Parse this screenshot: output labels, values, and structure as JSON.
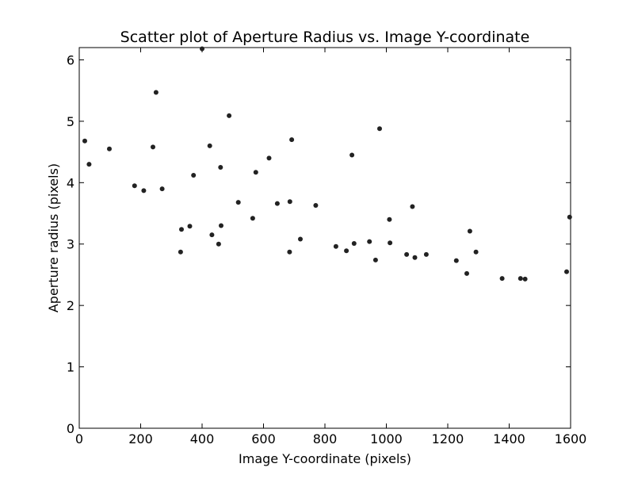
{
  "chart_data": {
    "type": "scatter",
    "title": "Scatter plot of Aperture Radius vs. Image Y-coordinate",
    "xlabel": "Image Y-coordinate (pixels)",
    "ylabel": "Aperture radius (pixels)",
    "xlim": [
      0,
      1600
    ],
    "ylim": [
      0,
      6.2
    ],
    "xticks": [
      "0",
      "200",
      "400",
      "600",
      "800",
      "1000",
      "1200",
      "1400",
      "1600"
    ],
    "yticks": [
      "0",
      "1",
      "2",
      "3",
      "4",
      "5",
      "6"
    ],
    "grid": false,
    "marker_color": "#222222",
    "series": [
      {
        "points": [
          [
            18,
            4.68
          ],
          [
            32,
            4.3
          ],
          [
            98,
            4.55
          ],
          [
            180,
            3.95
          ],
          [
            210,
            3.87
          ],
          [
            240,
            4.58
          ],
          [
            250,
            5.47
          ],
          [
            270,
            3.9
          ],
          [
            330,
            2.87
          ],
          [
            333,
            3.24
          ],
          [
            360,
            3.29
          ],
          [
            372,
            4.12
          ],
          [
            400,
            6.18
          ],
          [
            425,
            4.6
          ],
          [
            432,
            3.15
          ],
          [
            454,
            3.0
          ],
          [
            460,
            4.25
          ],
          [
            462,
            3.3
          ],
          [
            488,
            5.09
          ],
          [
            518,
            3.68
          ],
          [
            565,
            3.42
          ],
          [
            575,
            4.17
          ],
          [
            618,
            4.4
          ],
          [
            645,
            3.66
          ],
          [
            685,
            2.87
          ],
          [
            686,
            3.69
          ],
          [
            692,
            4.7
          ],
          [
            720,
            3.08
          ],
          [
            770,
            3.63
          ],
          [
            836,
            2.96
          ],
          [
            870,
            2.89
          ],
          [
            888,
            4.45
          ],
          [
            895,
            3.01
          ],
          [
            945,
            3.04
          ],
          [
            965,
            2.74
          ],
          [
            978,
            4.88
          ],
          [
            1010,
            3.4
          ],
          [
            1012,
            3.02
          ],
          [
            1066,
            2.83
          ],
          [
            1085,
            3.61
          ],
          [
            1093,
            2.78
          ],
          [
            1130,
            2.83
          ],
          [
            1228,
            2.73
          ],
          [
            1262,
            2.52
          ],
          [
            1272,
            3.21
          ],
          [
            1292,
            2.87
          ],
          [
            1377,
            2.44
          ],
          [
            1437,
            2.44
          ],
          [
            1452,
            2.43
          ],
          [
            1587,
            2.55
          ],
          [
            1597,
            3.44
          ]
        ]
      }
    ]
  }
}
